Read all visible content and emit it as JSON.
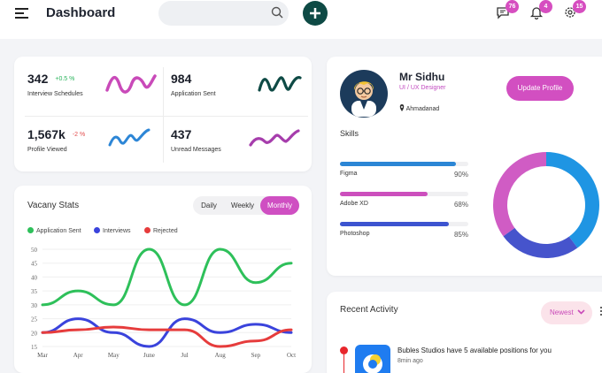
{
  "header": {
    "title": "Dashboard",
    "search_placeholder": "",
    "badges": {
      "messages": "76",
      "notifications": "4",
      "settings": "15"
    }
  },
  "stats": [
    {
      "value": "342",
      "change": "+0.5 %",
      "label": "Interview Schedules",
      "trend": "up",
      "color": "#c94ab9"
    },
    {
      "value": "984",
      "change": "",
      "label": "Application Sent",
      "trend": "up",
      "color": "#0e4a45"
    },
    {
      "value": "1,567k",
      "change": "-2 %",
      "label": "Profile Viewed",
      "trend": "down",
      "color": "#2d86d6"
    },
    {
      "value": "437",
      "change": "",
      "label": "Unread Messages",
      "trend": "up",
      "color": "#a63dac"
    }
  ],
  "vacancy": {
    "title": "Vacany Stats",
    "tabs": [
      {
        "label": "Daily",
        "active": false
      },
      {
        "label": "Weekly",
        "active": false
      },
      {
        "label": "Monthly",
        "active": true
      }
    ]
  },
  "chart_data": {
    "type": "line",
    "categories": [
      "Mar",
      "Apr",
      "May",
      "June",
      "Jul",
      "Aug",
      "Sep",
      "Oct"
    ],
    "ylim": [
      15,
      50
    ],
    "yticks": [
      15,
      20,
      25,
      30,
      35,
      40,
      45,
      50
    ],
    "series": [
      {
        "name": "Application Sent",
        "color": "#2ec05a",
        "values": [
          30,
          35,
          30,
          50,
          30,
          50,
          38,
          45
        ]
      },
      {
        "name": "Interviews",
        "color": "#3a43dc",
        "values": [
          20,
          25,
          20,
          15,
          25,
          20,
          23,
          20
        ]
      },
      {
        "name": "Rejected",
        "color": "#e63c3c",
        "values": [
          20,
          21,
          22,
          21,
          21,
          15,
          17,
          21
        ]
      }
    ]
  },
  "profile": {
    "name": "Mr Sidhu",
    "role": "UI / UX Designer",
    "location": "Ahmadanad",
    "update_label": "Update Profile"
  },
  "skills": {
    "title": "Skills",
    "items": [
      {
        "name": "Figma",
        "percent": "90%",
        "value": 0.9,
        "color": "#2b86d5"
      },
      {
        "name": "Adobe XD",
        "percent": "68%",
        "value": 0.68,
        "color": "#cc4fbd"
      },
      {
        "name": "Photoshop",
        "percent": "85%",
        "value": 0.85,
        "color": "#3c54d0"
      }
    ]
  },
  "donut": {
    "slices": [
      {
        "value": 40,
        "color": "#1f95e3"
      },
      {
        "value": 25,
        "color": "#4654cc"
      },
      {
        "value": 35,
        "color": "#d05cc4"
      }
    ]
  },
  "activity": {
    "title": "Recent Activity",
    "filter": "Newest",
    "items": [
      {
        "text": "Bubles Studios have 5 available positions for you",
        "time": "8min ago"
      }
    ]
  }
}
